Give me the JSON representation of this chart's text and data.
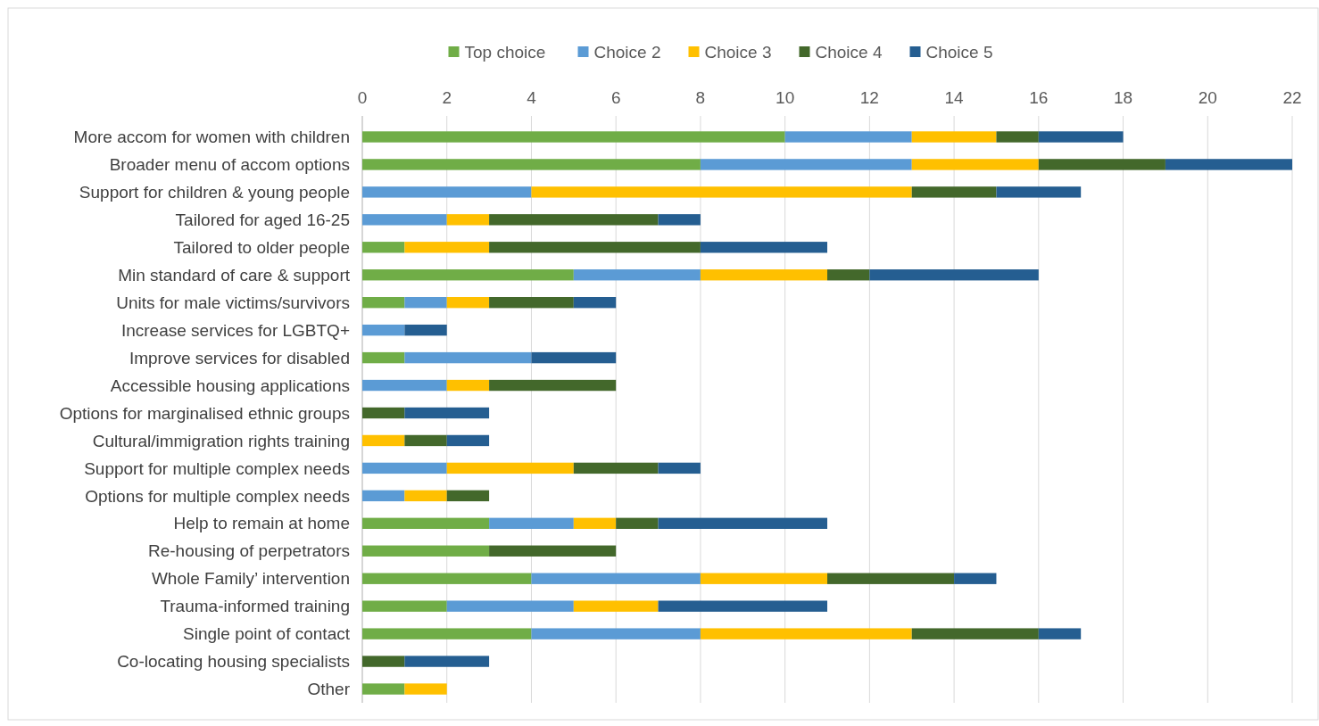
{
  "chart_data": {
    "type": "bar",
    "orientation": "horizontal",
    "stacked": true,
    "grid": "x",
    "legend": "top",
    "categories": [
      "More accom for women with children",
      "Broader menu of accom options",
      "Support for children & young people",
      "Tailored for aged 16-25",
      "Tailored to older people",
      "Min standard of care & support",
      "Units for male victims/survivors",
      "Increase services for LGBTQ+",
      "Improve services for disabled",
      "Accessible housing applications",
      "Options for marginalised ethnic groups",
      "Cultural/immigration rights training",
      "Support for multiple complex needs",
      "Options for multiple complex needs",
      "Help to remain at home",
      "Re-housing of perpetrators",
      "Whole Family’ intervention",
      "Trauma-informed training",
      "Single point of contact",
      "Co-locating housing specialists",
      "Other"
    ],
    "series": [
      {
        "name": "Top choice",
        "color": "#70ad47",
        "values": [
          10,
          8,
          0,
          0,
          1,
          5,
          1,
          0,
          1,
          0,
          0,
          0,
          0,
          0,
          3,
          3,
          4,
          2,
          4,
          0,
          1
        ]
      },
      {
        "name": "Choice 2",
        "color": "#5b9bd5",
        "values": [
          3,
          5,
          4,
          2,
          0,
          3,
          1,
          1,
          3,
          2,
          0,
          0,
          2,
          1,
          2,
          0,
          4,
          3,
          4,
          0,
          0
        ]
      },
      {
        "name": "Choice 3",
        "color": "#ffc000",
        "values": [
          2,
          3,
          9,
          1,
          2,
          3,
          1,
          0,
          0,
          1,
          0,
          1,
          3,
          1,
          1,
          0,
          3,
          2,
          5,
          0,
          1
        ]
      },
      {
        "name": "Choice 4",
        "color": "#43682b",
        "values": [
          1,
          3,
          2,
          4,
          5,
          1,
          2,
          0,
          0,
          3,
          1,
          1,
          2,
          1,
          1,
          3,
          3,
          0,
          3,
          1,
          0
        ]
      },
      {
        "name": "Choice 5",
        "color": "#255e91",
        "values": [
          2,
          3,
          2,
          1,
          3,
          4,
          1,
          1,
          2,
          0,
          2,
          1,
          1,
          0,
          4,
          0,
          1,
          4,
          1,
          2,
          0
        ]
      }
    ],
    "xlim": [
      0,
      22
    ],
    "xticks": [
      0,
      2,
      4,
      6,
      8,
      10,
      12,
      14,
      16,
      18,
      20,
      22
    ]
  }
}
